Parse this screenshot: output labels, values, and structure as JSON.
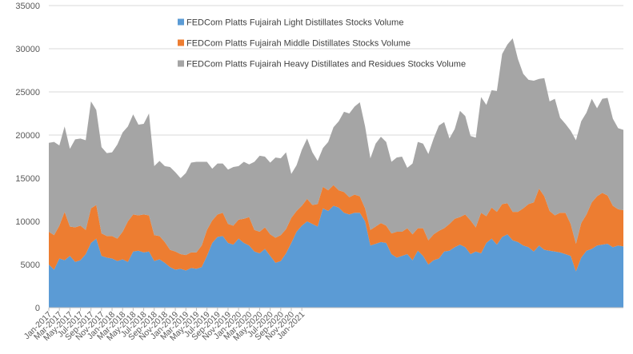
{
  "chart_data": {
    "type": "area",
    "stacked": true,
    "x_start": "2017-01",
    "x_end": "2021-03",
    "x_ticks": [
      "Jan-2017",
      "Mar-2017",
      "May-2017",
      "Jul-2017",
      "Sep-2017",
      "Nov-2017",
      "Jan-2018",
      "Mar-2018",
      "May-2018",
      "Jul-2018",
      "Sep-2018",
      "Nov-2018",
      "Jan-2019",
      "Mar-2019",
      "May-2019",
      "Jul-2019",
      "Sep-2019",
      "Nov-2019",
      "Jan-2020",
      "Mar-2020",
      "May-2020",
      "Jul-2020",
      "Sep-2020",
      "Nov-2020",
      "Jan-2021"
    ],
    "y_ticks": [
      "0",
      "5000",
      "10000",
      "15000",
      "20000",
      "25000",
      "30000",
      "35000"
    ],
    "ylim": [
      0,
      35000
    ],
    "legend_position": "top-center",
    "series": [
      {
        "name": "FEDCom Platts Fujairah Light Distillates Stocks Volume",
        "color": "#5B9BD5",
        "values": [
          5000,
          4400,
          5700,
          5500,
          6000,
          5300,
          5500,
          6200,
          7500,
          8000,
          6000,
          5800,
          5700,
          5400,
          5600,
          5300,
          6500,
          6600,
          6400,
          6500,
          5400,
          5600,
          5200,
          4700,
          4400,
          4500,
          4300,
          4600,
          4500,
          4700,
          6000,
          7500,
          8200,
          8300,
          7500,
          7300,
          8000,
          7500,
          7200,
          6500,
          6300,
          6800,
          6000,
          5200,
          5400,
          6300,
          7500,
          8800,
          9500,
          10000,
          9700,
          9400,
          11500,
          11200,
          11800,
          11600,
          11000,
          10800,
          11000,
          11000,
          10000,
          7200,
          7400,
          7600,
          7500,
          6200,
          5800,
          6000,
          6200,
          5500,
          6600,
          6000,
          5000,
          5500,
          5700,
          6500,
          6600,
          7000,
          7300,
          7000,
          6200,
          6500,
          6300,
          7500,
          8000,
          7300,
          8200,
          8500,
          7800,
          7600,
          7200,
          7000,
          6500,
          7200,
          6700,
          6600,
          6500,
          6400,
          6200,
          6000,
          4200,
          5800,
          6600,
          6800,
          7200,
          7300,
          7400,
          7000,
          7200,
          7100
        ]
      },
      {
        "name": "FEDCom Platts Fujairah Middle Distillates Stocks Volume",
        "color": "#ED7D31",
        "values": [
          3800,
          4000,
          3800,
          5600,
          3400,
          4000,
          4000,
          2800,
          4000,
          3900,
          2600,
          2500,
          2600,
          2600,
          3200,
          4700,
          4300,
          4100,
          4400,
          4200,
          3000,
          2700,
          2400,
          2000,
          2100,
          1700,
          1800,
          1800,
          1900,
          2500,
          3000,
          2600,
          2600,
          2700,
          2200,
          2200,
          2200,
          2800,
          3300,
          2500,
          2500,
          2500,
          2500,
          2900,
          3000,
          2800,
          2900,
          2400,
          2300,
          2600,
          2200,
          2600,
          2500,
          2400,
          2400,
          2000,
          2400,
          2000,
          2100,
          1900,
          1500,
          1800,
          2000,
          2200,
          2000,
          2400,
          3000,
          2800,
          3000,
          3000,
          2600,
          3200,
          2800,
          3000,
          3200,
          2700,
          3100,
          3300,
          3200,
          3800,
          3900,
          2800,
          4700,
          3100,
          3600,
          3800,
          3800,
          3600,
          3300,
          3500,
          4300,
          5000,
          5700,
          6600,
          6200,
          4600,
          4200,
          4600,
          4800,
          3700,
          3200,
          4000,
          4200,
          5400,
          5700,
          6000,
          5600,
          4800,
          4200,
          4200
        ]
      },
      {
        "name": "FEDCom Platts Fujairah Heavy Distillates and Residues Stocks Volume",
        "color": "#A5A5A5",
        "values": [
          10300,
          10800,
          9300,
          9900,
          9000,
          10200,
          10100,
          10400,
          12400,
          11000,
          10000,
          9600,
          9700,
          10900,
          11500,
          11000,
          11600,
          10500,
          10500,
          11800,
          8000,
          8700,
          8800,
          9600,
          9200,
          8800,
          9500,
          10400,
          10500,
          9700,
          7900,
          6000,
          5900,
          5700,
          6300,
          6800,
          6200,
          6600,
          6100,
          7900,
          8800,
          8200,
          8300,
          9300,
          8900,
          8900,
          5100,
          5300,
          6500,
          7000,
          6100,
          5000,
          4500,
          5600,
          6700,
          8000,
          9300,
          9700,
          10200,
          10900,
          9500,
          8300,
          9600,
          10000,
          9700,
          8300,
          8600,
          8700,
          7000,
          8200,
          10000,
          9800,
          10000,
          11100,
          12200,
          12300,
          9900,
          10400,
          12300,
          11400,
          9800,
          10400,
          13400,
          12900,
          13600,
          14000,
          17400,
          18400,
          20100,
          17700,
          15600,
          14400,
          14100,
          12700,
          13700,
          12700,
          13500,
          11000,
          10300,
          10800,
          12000,
          11800,
          11800,
          12000,
          10200,
          10900,
          11300,
          10100,
          9400,
          9300
        ]
      }
    ]
  }
}
